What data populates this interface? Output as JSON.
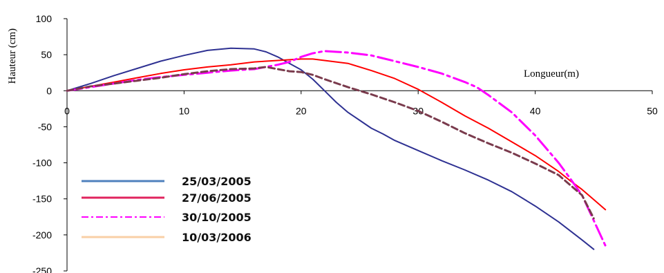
{
  "chart_data": {
    "type": "line",
    "title": "",
    "xlabel": "Longueur(m)",
    "ylabel": "Hauteur (cm)",
    "xlim": [
      0,
      50
    ],
    "ylim": [
      -250,
      100
    ],
    "x_ticks": [
      "0",
      "10",
      "20",
      "30",
      "40",
      "50"
    ],
    "y_ticks": [
      "100",
      "50",
      "0",
      "-50",
      "-100",
      "-150",
      "-200",
      "-250"
    ],
    "grid": false,
    "legend_position": "bottom-left",
    "series": [
      {
        "name": "25/03/2005",
        "color": "#2e3192",
        "legend_color": "#4f81bd",
        "style": "solid",
        "x": [
          0,
          2,
          4,
          6,
          8,
          10,
          12,
          14,
          16,
          17,
          18,
          19,
          20,
          21,
          22,
          23,
          24,
          25,
          26,
          27,
          28,
          30,
          32,
          34,
          36,
          38,
          40,
          42,
          44,
          45
        ],
        "y": [
          0,
          10,
          21,
          31,
          41,
          49,
          56,
          59,
          58,
          54,
          47,
          38,
          29,
          16,
          0,
          -16,
          -30,
          -41,
          -52,
          -60,
          -69,
          -83,
          -97,
          -110,
          -124,
          -140,
          -160,
          -182,
          -207,
          -220
        ]
      },
      {
        "name": "27/06/2005",
        "color": "#ff0000",
        "legend_color": "#e0245e",
        "style": "solid",
        "x": [
          0,
          2,
          4,
          6,
          8,
          10,
          12,
          14,
          16,
          18,
          20,
          21,
          22,
          24,
          26,
          28,
          30,
          32,
          34,
          36,
          38,
          40,
          42,
          43,
          44,
          45,
          46
        ],
        "y": [
          0,
          6,
          12,
          18,
          24,
          29,
          33,
          36,
          40,
          42,
          44,
          44,
          42,
          38,
          28,
          17,
          2,
          -16,
          -35,
          -52,
          -71,
          -90,
          -112,
          -125,
          -137,
          -151,
          -165
        ]
      },
      {
        "name": "30/10/2005",
        "color": "#ff00ff",
        "legend_color": "#ff00ff",
        "style": "dashdot",
        "x": [
          0,
          2,
          4,
          6,
          8,
          10,
          12,
          14,
          16,
          18,
          19,
          20,
          21,
          22,
          23,
          24,
          26,
          28,
          30,
          32,
          34,
          35,
          36,
          38,
          40,
          42,
          43,
          44,
          45,
          46
        ],
        "y": [
          0,
          5,
          10,
          15,
          19,
          22,
          25,
          28,
          30,
          36,
          40,
          47,
          52,
          55,
          54,
          53,
          49,
          41,
          33,
          24,
          12,
          5,
          -6,
          -30,
          -62,
          -100,
          -122,
          -145,
          -180,
          -215
        ]
      },
      {
        "name": "10/03/2006",
        "color": "#7a3b4d",
        "legend_color": "#f9cfa6",
        "style": "dashed",
        "x": [
          0,
          2,
          4,
          6,
          8,
          10,
          12,
          14,
          16,
          17,
          18,
          19,
          20,
          21,
          22,
          24,
          26,
          28,
          30,
          32,
          34,
          36,
          38,
          40,
          42,
          44,
          45
        ],
        "y": [
          0,
          6,
          10,
          14,
          18,
          23,
          27,
          30,
          31,
          33,
          30,
          27,
          26,
          22,
          16,
          5,
          -5,
          -16,
          -28,
          -43,
          -59,
          -73,
          -86,
          -101,
          -117,
          -145,
          -177
        ]
      }
    ]
  }
}
